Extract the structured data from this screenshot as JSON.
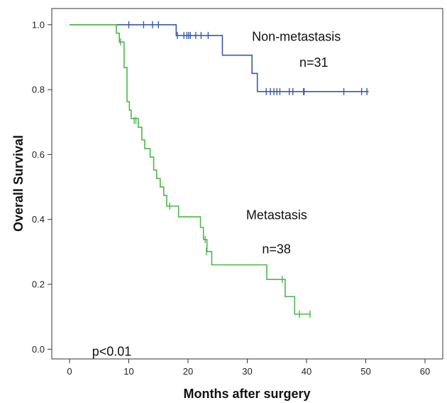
{
  "chart_data": {
    "type": "line",
    "subtype": "kaplan-meier-step",
    "title": "",
    "xlabel": "Months after surgery",
    "ylabel": "Overall Survival",
    "xlim": [
      -3,
      63
    ],
    "ylim": [
      -0.03,
      1.05
    ],
    "x_ticks": [
      0,
      10,
      20,
      30,
      40,
      50,
      60
    ],
    "y_ticks": [
      0.0,
      0.2,
      0.4,
      0.6,
      0.8,
      1.0
    ],
    "y_tick_labels": [
      "0.0",
      "0.2",
      "0.4",
      "0.6",
      "0.8",
      "1.0"
    ],
    "grid": false,
    "legend": "none",
    "colors": {
      "axis": "#333333",
      "background": "#ffffff"
    },
    "series": [
      {
        "name": "Non-metastasis",
        "color": "#3a5aa8",
        "steps": [
          [
            0,
            1.0
          ],
          [
            18.0,
            0.967
          ],
          [
            25.8,
            0.906
          ],
          [
            30.8,
            0.85
          ],
          [
            31.7,
            0.794
          ],
          [
            50.5,
            0.794
          ]
        ],
        "censored": [
          [
            10,
            1.0
          ],
          [
            12.5,
            1.0
          ],
          [
            14.0,
            1.0
          ],
          [
            15.0,
            1.0
          ],
          [
            18.2,
            0.967
          ],
          [
            19.3,
            0.967
          ],
          [
            19.8,
            0.967
          ],
          [
            20.1,
            0.967
          ],
          [
            20.4,
            0.967
          ],
          [
            21.3,
            0.967
          ],
          [
            22.2,
            0.967
          ],
          [
            23.4,
            0.967
          ],
          [
            33.2,
            0.794
          ],
          [
            33.9,
            0.794
          ],
          [
            34.5,
            0.794
          ],
          [
            35.0,
            0.794
          ],
          [
            35.5,
            0.794
          ],
          [
            37.1,
            0.794
          ],
          [
            37.7,
            0.794
          ],
          [
            39.5,
            0.794
          ],
          [
            39.6,
            0.794
          ],
          [
            46.3,
            0.794
          ],
          [
            49.3,
            0.794
          ],
          [
            50.2,
            0.794
          ]
        ]
      },
      {
        "name": "Metastasis",
        "color": "#4cb84a",
        "steps": [
          [
            0,
            1.0
          ],
          [
            7.9,
            0.974
          ],
          [
            8.4,
            0.947
          ],
          [
            9.2,
            0.868
          ],
          [
            9.7,
            0.763
          ],
          [
            10.1,
            0.737
          ],
          [
            10.4,
            0.711
          ],
          [
            11.6,
            0.684
          ],
          [
            12.2,
            0.645
          ],
          [
            12.7,
            0.618
          ],
          [
            13.6,
            0.592
          ],
          [
            14.2,
            0.552
          ],
          [
            14.7,
            0.526
          ],
          [
            15.3,
            0.5
          ],
          [
            15.9,
            0.474
          ],
          [
            16.4,
            0.441
          ],
          [
            18.4,
            0.408
          ],
          [
            22.1,
            0.375
          ],
          [
            22.6,
            0.338
          ],
          [
            23.2,
            0.301
          ],
          [
            24.0,
            0.26
          ],
          [
            33.3,
            0.215
          ],
          [
            36.4,
            0.162
          ],
          [
            38.0,
            0.108
          ],
          [
            40.7,
            0.108
          ]
        ],
        "censored": [
          [
            8.6,
            0.947
          ],
          [
            10.9,
            0.705
          ],
          [
            11.2,
            0.705
          ],
          [
            16.9,
            0.441
          ],
          [
            22.9,
            0.338
          ],
          [
            23.1,
            0.301
          ],
          [
            35.9,
            0.215
          ],
          [
            38.8,
            0.108
          ],
          [
            40.6,
            0.108
          ]
        ]
      }
    ],
    "annotations": [
      {
        "text": "Non-metastasis",
        "x": 30.8,
        "y": 0.95,
        "color": "#111111"
      },
      {
        "text": "n=31",
        "x": 38.8,
        "y": 0.87,
        "color": "#111111"
      },
      {
        "text": "Metastasis",
        "x": 29.8,
        "y": 0.4,
        "color": "#111111"
      },
      {
        "text": "n=38",
        "x": 32.5,
        "y": 0.295,
        "color": "#111111"
      },
      {
        "text": "p<0.01",
        "x": 3.8,
        "y": -0.02,
        "color": "#111111"
      }
    ]
  }
}
